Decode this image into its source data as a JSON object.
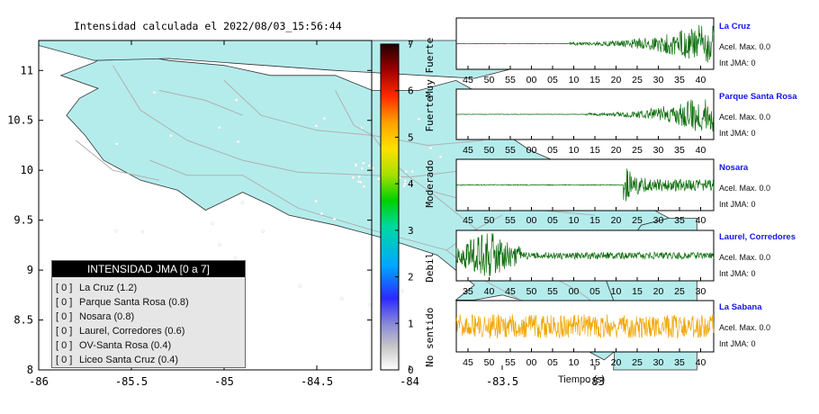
{
  "map": {
    "title": "Intensidad calculada el 2022/08/03_15:56:44",
    "x_ticks": [
      "-86",
      "-85.5",
      "-85",
      "-84.5",
      "-84",
      "-83.5",
      "-83"
    ],
    "y_ticks": [
      "11",
      "10.5",
      "10",
      "9.5",
      "9",
      "8.5",
      "8"
    ],
    "land_color": "#b4ecec",
    "water_color": "#ffffff"
  },
  "scale": {
    "ticks": [
      "7",
      "6",
      "5",
      "4",
      "3",
      "2",
      "1",
      "0"
    ],
    "labels": [
      "Muy Fuerte",
      "Fuerte",
      "Moderado",
      "Debil",
      "No sentido"
    ]
  },
  "legend": {
    "header": "INTENSIDAD JMA [0 a 7]",
    "rows": [
      {
        "bracket": "[ 0 ]",
        "label": "La Cruz (1.2)"
      },
      {
        "bracket": "[ 0 ]",
        "label": "Parque Santa Rosa (0.8)"
      },
      {
        "bracket": "[ 0 ]",
        "label": "Nosara (0.8)"
      },
      {
        "bracket": "[ 0 ]",
        "label": "Laurel, Corredores (0.6)"
      },
      {
        "bracket": "[ 0 ]",
        "label": "OV-Santa Rosa (0.4)"
      },
      {
        "bracket": "[ 0 ]",
        "label": "Liceo Santa Cruz (0.4)"
      }
    ]
  },
  "waveforms": {
    "x_title": "Tiempo (s)",
    "ticks_standard": [
      "45",
      "50",
      "55",
      "00",
      "05",
      "10",
      "15",
      "20",
      "25",
      "30",
      "35",
      "40"
    ],
    "ticks_laurel": [
      "35",
      "40",
      "45",
      "50",
      "55",
      "00",
      "05",
      "10",
      "15",
      "20",
      "25",
      "30"
    ],
    "panels": [
      {
        "name": "La Cruz",
        "acel": "Acel. Max. 0.0",
        "jma": "Int JMA: 0",
        "color": "#0a6b0a"
      },
      {
        "name": "Parque Santa Rosa",
        "acel": "Acel. Max. 0.0",
        "jma": "Int JMA: 0",
        "color": "#0a6b0a"
      },
      {
        "name": "Nosara",
        "acel": "Acel. Max. 0.0",
        "jma": "Int JMA: 0",
        "color": "#0a6b0a"
      },
      {
        "name": "Laurel, Corredores",
        "acel": "Acel. Max. 0.0",
        "jma": "Int JMA: 0",
        "color": "#0a6b0a"
      },
      {
        "name": "La Sabana",
        "acel": "Acel. Max. 0.0",
        "jma": "Int JMA: 0",
        "color": "#f0a400"
      }
    ]
  }
}
